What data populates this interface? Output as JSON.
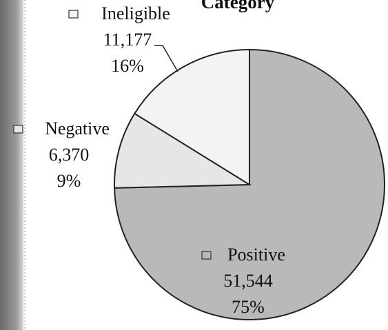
{
  "chart_data": {
    "type": "pie",
    "title": "Category",
    "categories": [
      "Positive",
      "Negative",
      "Ineligible"
    ],
    "values": [
      51544,
      6370,
      11177
    ],
    "value_labels": [
      "51,544",
      "6,370",
      "11,177"
    ],
    "percent_values": [
      75,
      9,
      16
    ],
    "percent_labels": [
      "75%",
      "9%",
      "16%"
    ],
    "colors": [
      "#b9b9b9",
      "#e6e6e6",
      "#f3f3f3"
    ]
  }
}
